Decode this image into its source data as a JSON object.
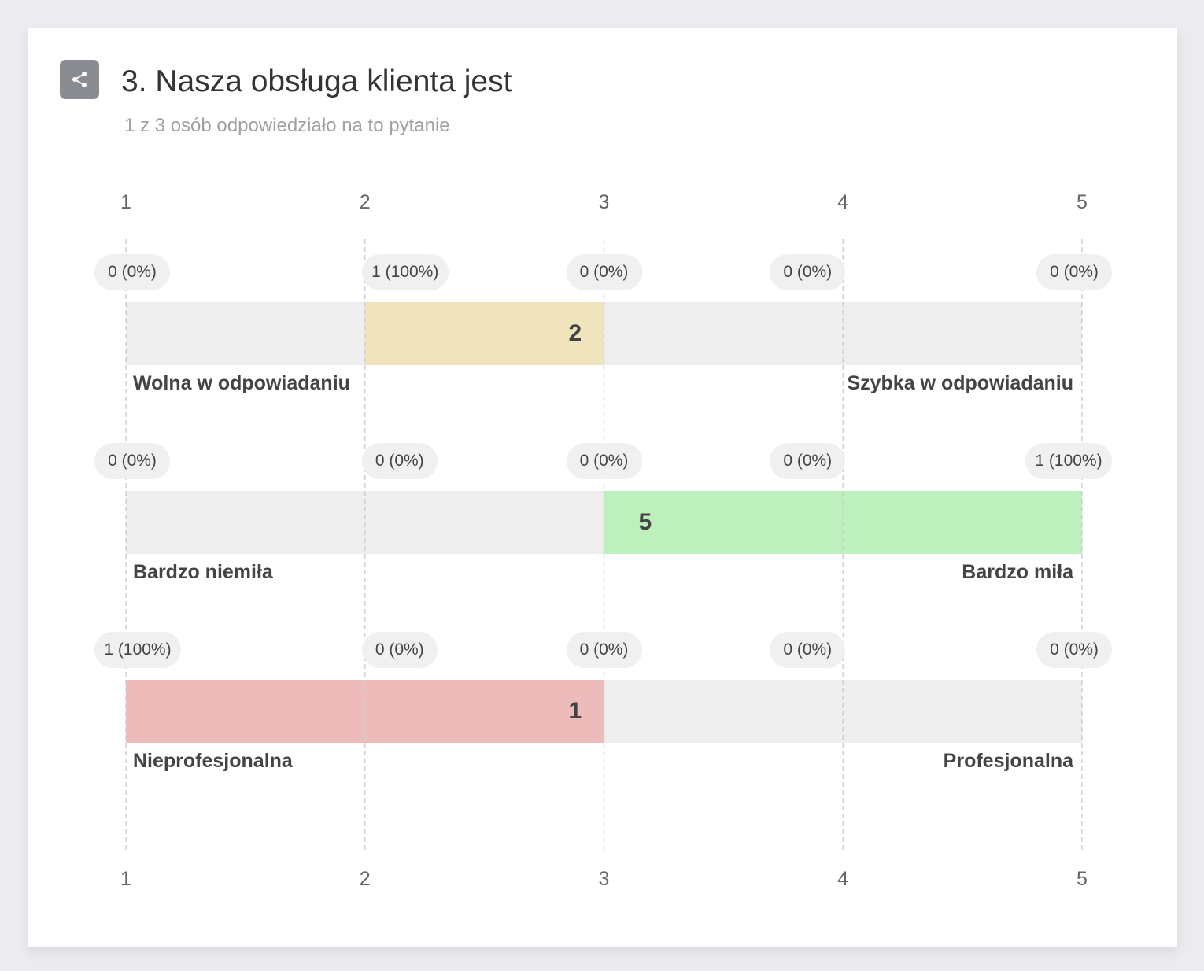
{
  "header": {
    "share_icon": "share-icon",
    "title": "3. Nasza obsługa klienta jest",
    "subtitle": "1 z 3 osób odpowiedziało na to pytanie"
  },
  "chart_data": {
    "type": "bar",
    "scale": [
      1,
      2,
      3,
      4,
      5
    ],
    "xlim": [
      1,
      5
    ],
    "grid": true,
    "ticks_top": [
      "1",
      "2",
      "3",
      "4",
      "5"
    ],
    "ticks_bottom": [
      "1",
      "2",
      "3",
      "4",
      "5"
    ],
    "rows": [
      {
        "left_label": "Wolna w odpowiadaniu",
        "right_label": "Szybka w odpowiadaniu",
        "value": 2,
        "value_label": "2",
        "color": "#f0e4bd",
        "counts": [
          "0 (0%)",
          "1 (100%)",
          "0 (0%)",
          "0 (0%)",
          "0 (0%)"
        ]
      },
      {
        "left_label": "Bardzo niemiła",
        "right_label": "Bardzo miła",
        "value": 5,
        "value_label": "5",
        "color": "#bdf0bd",
        "counts": [
          "0 (0%)",
          "0 (0%)",
          "0 (0%)",
          "0 (0%)",
          "1 (100%)"
        ]
      },
      {
        "left_label": "Nieprofesjonalna",
        "right_label": "Profesjonalna",
        "value": 1,
        "value_label": "1",
        "color": "#eebbbb",
        "counts": [
          "1 (100%)",
          "0 (0%)",
          "0 (0%)",
          "0 (0%)",
          "0 (0%)"
        ]
      }
    ]
  }
}
